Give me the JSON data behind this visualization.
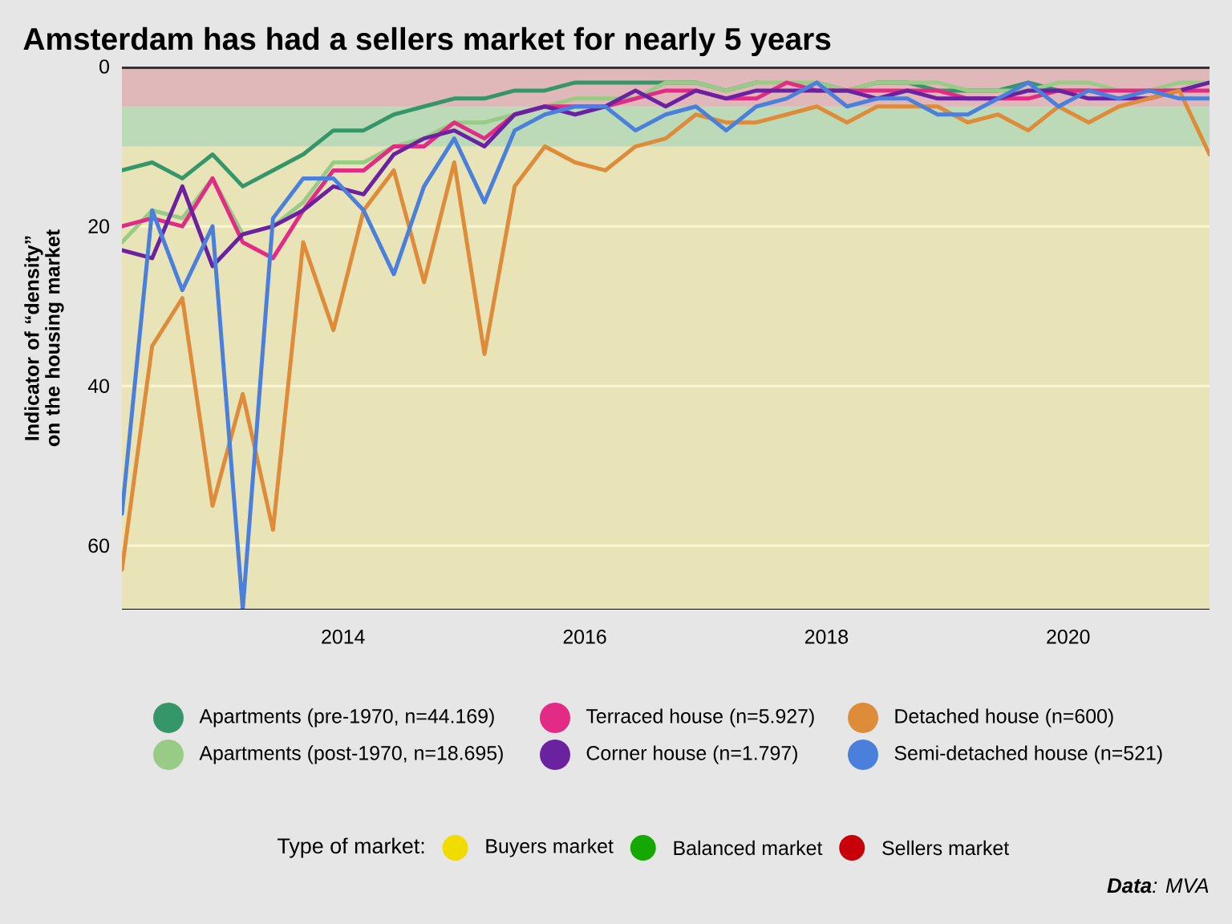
{
  "chart_data": {
    "type": "line",
    "title": "Amsterdam has had a sellers market for nearly 5 years",
    "ylabel": "Indicator of “density” on the housing market",
    "x": [
      "2012-03",
      "2012-06",
      "2012-09",
      "2012-12",
      "2013-03",
      "2013-06",
      "2013-09",
      "2013-12",
      "2014-03",
      "2014-06",
      "2014-09",
      "2014-12",
      "2015-03",
      "2015-06",
      "2015-09",
      "2015-12",
      "2016-03",
      "2016-06",
      "2016-09",
      "2016-12",
      "2017-03",
      "2017-06",
      "2017-09",
      "2017-12",
      "2018-03",
      "2018-06",
      "2018-09",
      "2018-12",
      "2019-03",
      "2019-06",
      "2019-09",
      "2019-12",
      "2020-03",
      "2020-06",
      "2020-09",
      "2020-12",
      "2021-03"
    ],
    "series": [
      {
        "name": "Apartments (pre-1970, n=44.169)",
        "color": "#35966a",
        "values": [
          13,
          12,
          14,
          11,
          15,
          13,
          11,
          8,
          8,
          6,
          5,
          4,
          4,
          3,
          3,
          2,
          2,
          2,
          2,
          2,
          3,
          2,
          null,
          2,
          3,
          2,
          2,
          3,
          3,
          3,
          2,
          3,
          3,
          null,
          3,
          3,
          null
        ]
      },
      {
        "name": "Apartments (post-1970, n=18.695)",
        "color": "#98cc86",
        "values": [
          22,
          18,
          19,
          14,
          21,
          20,
          17,
          12,
          12,
          10,
          9,
          7,
          7,
          6,
          5,
          4,
          4,
          4,
          2,
          2,
          3,
          2,
          2,
          2,
          3,
          2,
          2,
          2,
          3,
          3,
          3,
          2,
          2,
          3,
          3,
          2,
          2
        ]
      },
      {
        "name": "Terraced house (n=5.927)",
        "color": "#e32b86",
        "values": [
          20,
          19,
          20,
          14,
          22,
          24,
          18,
          13,
          13,
          10,
          10,
          7,
          9,
          6,
          5,
          5,
          5,
          4,
          3,
          3,
          4,
          4,
          2,
          3,
          3,
          3,
          3,
          3,
          4,
          4,
          4,
          3,
          3,
          3,
          3,
          3,
          3
        ]
      },
      {
        "name": "Corner house (n=1.797)",
        "color": "#6a22a0",
        "values": [
          23,
          24,
          15,
          25,
          21,
          20,
          18,
          15,
          16,
          11,
          9,
          8,
          10,
          6,
          5,
          6,
          5,
          3,
          5,
          3,
          4,
          3,
          3,
          3,
          3,
          4,
          3,
          4,
          4,
          4,
          3,
          3,
          4,
          4,
          4,
          3,
          2
        ]
      },
      {
        "name": "Detached house (n=600)",
        "color": "#de8b3a",
        "values": [
          63,
          35,
          29,
          55,
          41,
          58,
          22,
          33,
          18,
          13,
          27,
          12,
          36,
          15,
          10,
          12,
          13,
          10,
          9,
          6,
          7,
          7,
          6,
          5,
          7,
          5,
          5,
          5,
          7,
          6,
          8,
          5,
          7,
          5,
          4,
          3,
          11
        ]
      },
      {
        "name": "Semi-detached house (n=521)",
        "color": "#4a7fdc",
        "values": [
          56,
          18,
          28,
          20,
          68,
          19,
          14,
          14,
          18,
          26,
          15,
          9,
          17,
          8,
          6,
          5,
          5,
          8,
          6,
          5,
          8,
          5,
          4,
          2,
          5,
          4,
          4,
          6,
          6,
          4,
          2,
          5,
          3,
          4,
          3,
          4,
          4
        ]
      }
    ],
    "xlim": [
      "2012-03",
      "2021-03"
    ],
    "xticks": [
      "2014",
      "2016",
      "2018",
      "2020"
    ],
    "ylim": [
      68,
      0
    ],
    "yticks": [
      0,
      20,
      40,
      60
    ],
    "grid": "y",
    "legend": "bottom",
    "marker": "none",
    "line_style": "solid",
    "legend_title": "Type of market:",
    "bands": [
      {
        "axis": "y",
        "from": 10,
        "to": 68,
        "label": "Buyers market",
        "color": "#f0dc00"
      },
      {
        "axis": "y",
        "from": 5,
        "to": 10,
        "label": "Balanced market",
        "color": "#14a800"
      },
      {
        "axis": "y",
        "from": 0,
        "to": 5,
        "label": "Sellers market",
        "color": "#c8000a"
      }
    ],
    "ref_lines": [
      {
        "axis": "y",
        "value": 0,
        "color": "#333333"
      }
    ],
    "annotations": [
      "**Data**: MVA"
    ]
  }
}
